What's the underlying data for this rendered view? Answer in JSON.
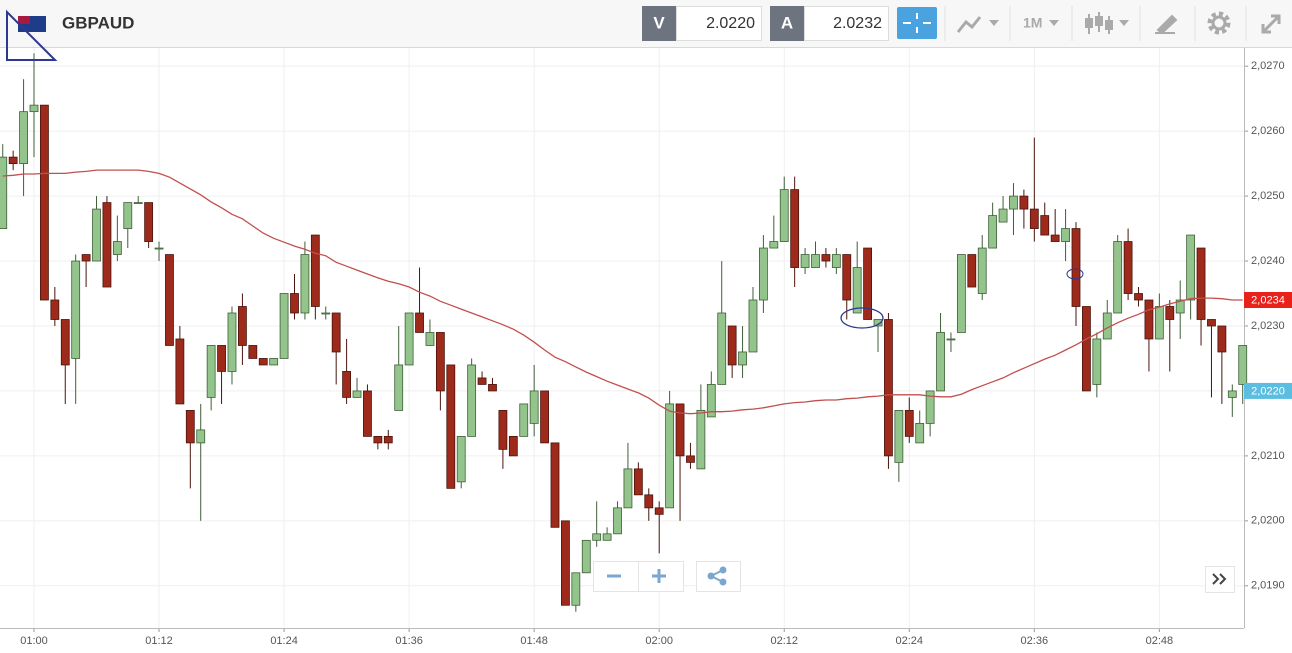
{
  "header": {
    "symbol": "GBPAUD",
    "sell_label": "V",
    "sell_price": "2.0220",
    "buy_label": "A",
    "buy_price": "2.0232",
    "timeframe": "1M"
  },
  "chart_data": {
    "type": "candlestick",
    "categories": [
      null,
      null,
      null,
      "01:00",
      null,
      null,
      null,
      null,
      null,
      null,
      null,
      null,
      null,
      null,
      null,
      "01:12",
      null,
      null,
      null,
      null,
      null,
      null,
      null,
      null,
      null,
      null,
      null,
      "01:24",
      null,
      null,
      null,
      null,
      null,
      null,
      null,
      null,
      null,
      null,
      null,
      "01:36",
      null,
      null,
      null,
      null,
      null,
      null,
      null,
      null,
      null,
      null,
      null,
      "01:48",
      null,
      null,
      null,
      null,
      null,
      null,
      null,
      null,
      null,
      null,
      null,
      "02:00",
      null,
      null,
      null,
      null,
      null,
      null,
      null,
      null,
      null,
      null,
      null,
      "02:12",
      null,
      null,
      null,
      null,
      null,
      null,
      null,
      null,
      null,
      null,
      null,
      "02:24",
      null,
      null,
      null,
      null,
      null,
      null,
      null,
      null,
      null,
      null,
      null,
      "02:36",
      null,
      null,
      null,
      null,
      null,
      null,
      null,
      null,
      null,
      null,
      null,
      "02:48",
      null,
      null,
      null,
      null,
      null,
      null,
      null,
      null
    ],
    "open": [
      2.0245,
      2.0256,
      2.0255,
      2.0263,
      2.0264,
      2.0234,
      2.0231,
      2.0225,
      2.0241,
      2.024,
      2.0249,
      2.0241,
      2.0245,
      2.0249,
      2.0249,
      2.0242,
      2.0241,
      2.0228,
      2.0217,
      2.0212,
      2.0219,
      2.0227,
      2.0223,
      2.0233,
      2.0227,
      2.0225,
      2.0224,
      2.0225,
      2.0235,
      2.0232,
      2.0244,
      2.0232,
      2.0232,
      2.0223,
      2.0219,
      2.022,
      2.0213,
      2.0213,
      2.0217,
      2.0224,
      2.0232,
      2.0227,
      2.0229,
      2.0224,
      2.0206,
      2.0213,
      2.0222,
      2.0221,
      2.0217,
      2.0213,
      2.0213,
      2.0215,
      2.022,
      2.0212,
      2.02,
      2.0187,
      2.0192,
      2.0197,
      2.0197,
      2.0198,
      2.0202,
      2.0208,
      2.0204,
      2.0202,
      2.0202,
      2.0218,
      2.021,
      2.0208,
      2.0216,
      2.0221,
      2.023,
      2.0224,
      2.0226,
      2.0234,
      2.0242,
      2.0243,
      2.0251,
      2.0239,
      2.0239,
      2.0241,
      2.0239,
      2.0241,
      2.0232,
      2.0242,
      2.023,
      2.0231,
      2.0209,
      2.0217,
      2.0212,
      2.0215,
      2.022,
      2.0228,
      2.0229,
      2.0241,
      2.0235,
      2.0242,
      2.0246,
      2.0248,
      2.025,
      2.0248,
      2.0247,
      2.0244,
      2.0243,
      2.0245,
      2.0233,
      2.0221,
      2.0228,
      2.0232,
      2.0243,
      2.0235,
      2.0234,
      2.0228,
      2.0233,
      2.0232,
      2.0234,
      2.0242,
      2.0231,
      2.023,
      2.0219,
      2.0221
    ],
    "high": [
      2.0258,
      2.0257,
      2.0268,
      2.0272,
      2.0264,
      2.0236,
      2.0231,
      2.0241,
      2.0241,
      2.025,
      2.025,
      2.0247,
      2.0249,
      2.025,
      2.0249,
      2.0243,
      2.0241,
      2.023,
      2.0217,
      2.0218,
      2.0227,
      2.0227,
      2.0233,
      2.0235,
      2.0227,
      2.0225,
      2.0225,
      2.0235,
      2.0238,
      2.0243,
      2.0244,
      2.0233,
      2.0232,
      2.0228,
      2.0222,
      2.0221,
      2.0213,
      2.0214,
      2.023,
      2.0232,
      2.0239,
      2.0231,
      2.0229,
      2.0224,
      2.0213,
      2.0225,
      2.0223,
      2.0222,
      2.0217,
      2.0213,
      2.0218,
      2.0224,
      2.022,
      2.0212,
      2.02,
      2.0192,
      2.0197,
      2.0203,
      2.0199,
      2.0203,
      2.0212,
      2.0209,
      2.0205,
      2.0203,
      2.022,
      2.0218,
      2.0212,
      2.0221,
      2.0223,
      2.024,
      2.023,
      2.023,
      2.0236,
      2.0244,
      2.0247,
      2.0253,
      2.0253,
      2.0242,
      2.0243,
      2.0242,
      2.0242,
      2.0241,
      2.0243,
      2.0242,
      2.0231,
      2.0232,
      2.0217,
      2.0219,
      2.0217,
      2.022,
      2.0232,
      2.0229,
      2.0241,
      2.0241,
      2.0244,
      2.0249,
      2.025,
      2.0252,
      2.0251,
      2.0259,
      2.0249,
      2.0248,
      2.0248,
      2.0246,
      2.0233,
      2.0229,
      2.0234,
      2.0244,
      2.0245,
      2.0236,
      2.0234,
      2.0235,
      2.0234,
      2.0237,
      2.0244,
      2.0242,
      2.0231,
      2.023,
      2.0221,
      2.0227
    ],
    "low": [
      2.0245,
      2.0254,
      2.025,
      2.0256,
      2.0234,
      2.023,
      2.0218,
      2.0218,
      2.0236,
      2.024,
      2.0236,
      2.024,
      2.0242,
      2.0249,
      2.0242,
      2.024,
      2.0227,
      2.0218,
      2.0205,
      2.02,
      2.0217,
      2.0218,
      2.0221,
      2.0224,
      2.0225,
      2.0224,
      2.0224,
      2.0225,
      2.0231,
      2.0231,
      2.0231,
      2.0231,
      2.0221,
      2.0218,
      2.0219,
      2.0213,
      2.0211,
      2.0211,
      2.0217,
      2.0224,
      2.0229,
      2.0227,
      2.0217,
      2.0205,
      2.0205,
      2.0213,
      2.0221,
      2.022,
      2.0208,
      2.021,
      2.0213,
      2.0213,
      2.0212,
      2.0199,
      2.0187,
      2.0186,
      2.0192,
      2.0196,
      2.0197,
      2.0198,
      2.0202,
      2.0204,
      2.02,
      2.0195,
      2.0202,
      2.02,
      2.0208,
      2.0208,
      2.0216,
      2.0221,
      2.0222,
      2.0222,
      2.0226,
      2.0232,
      2.0242,
      2.0243,
      2.0236,
      2.0238,
      2.0239,
      2.0239,
      2.0238,
      2.0231,
      2.0232,
      2.0231,
      2.0226,
      2.0208,
      2.0206,
      2.0212,
      2.0212,
      2.0213,
      2.022,
      2.0226,
      2.0229,
      2.0236,
      2.0234,
      2.0242,
      2.0246,
      2.0244,
      2.0245,
      2.0243,
      2.0244,
      2.0243,
      2.024,
      2.023,
      2.022,
      2.0219,
      2.0228,
      2.0232,
      2.0234,
      2.0233,
      2.0223,
      2.0228,
      2.0223,
      2.0228,
      2.0231,
      2.0227,
      2.0219,
      2.0218,
      2.0216,
      2.0218
    ],
    "close": [
      2.0256,
      2.0255,
      2.0263,
      2.0264,
      2.0234,
      2.0231,
      2.0224,
      2.024,
      2.024,
      2.0248,
      2.0236,
      2.0243,
      2.0249,
      2.0249,
      2.0243,
      2.0242,
      2.0227,
      2.0218,
      2.0212,
      2.0214,
      2.0227,
      2.0223,
      2.0232,
      2.0227,
      2.0225,
      2.0224,
      2.0225,
      2.0235,
      2.0232,
      2.0241,
      2.0233,
      2.0232,
      2.0226,
      2.0219,
      2.022,
      2.0213,
      2.0212,
      2.0212,
      2.0224,
      2.0232,
      2.0229,
      2.0229,
      2.022,
      2.0205,
      2.0213,
      2.0224,
      2.0221,
      2.022,
      2.0211,
      2.021,
      2.0218,
      2.022,
      2.0212,
      2.0199,
      2.0187,
      2.0192,
      2.0197,
      2.0198,
      2.0198,
      2.0202,
      2.0208,
      2.0204,
      2.0202,
      2.0201,
      2.0218,
      2.021,
      2.0209,
      2.0217,
      2.0221,
      2.0232,
      2.0224,
      2.0226,
      2.0234,
      2.0242,
      2.0243,
      2.0251,
      2.0239,
      2.0241,
      2.0241,
      2.024,
      2.0241,
      2.0234,
      2.0239,
      2.0231,
      2.0231,
      2.021,
      2.0217,
      2.0213,
      2.0215,
      2.022,
      2.0229,
      2.0228,
      2.0241,
      2.0236,
      2.0242,
      2.0247,
      2.0248,
      2.025,
      2.0248,
      2.0245,
      2.0244,
      2.0243,
      2.0245,
      2.0233,
      2.022,
      2.0228,
      2.0232,
      2.0243,
      2.0235,
      2.0234,
      2.0228,
      2.0233,
      2.0231,
      2.0234,
      2.0244,
      2.0231,
      2.023,
      2.0226,
      2.022,
      2.0227
    ],
    "up_color": "#93c48b",
    "down_color": "#9e2a1c",
    "moving_average": {
      "color": "#c0504d",
      "values": [
        2.02531,
        2.02532,
        2.02534,
        2.02534,
        2.02535,
        2.02535,
        2.02535,
        2.02537,
        2.02538,
        2.0254,
        2.0254,
        2.0254,
        2.0254,
        2.0254,
        2.02538,
        2.02535,
        2.02529,
        2.0252,
        2.02511,
        2.02502,
        2.02491,
        2.02482,
        2.02472,
        2.02465,
        2.02454,
        2.02443,
        2.02435,
        2.02429,
        2.02423,
        2.02418,
        2.02412,
        2.02408,
        2.02398,
        2.02392,
        2.02386,
        2.0238,
        2.02374,
        2.02369,
        2.02365,
        2.0236,
        2.02352,
        2.02346,
        2.02338,
        2.02332,
        2.02326,
        2.0232,
        2.02314,
        2.02308,
        2.02302,
        2.02295,
        2.02286,
        2.02275,
        2.02263,
        2.02252,
        2.02245,
        2.02237,
        2.02229,
        2.02222,
        2.02215,
        2.02209,
        2.02203,
        2.02197,
        2.02189,
        2.02178,
        2.02169,
        2.02166,
        2.02165,
        2.02166,
        2.02168,
        2.02168,
        2.02169,
        2.02171,
        2.02172,
        2.02174,
        2.02177,
        2.0218,
        2.02182,
        2.02183,
        2.02185,
        2.02186,
        2.02186,
        2.02188,
        2.02189,
        2.02191,
        2.02192,
        2.02194,
        2.02194,
        2.02194,
        2.02194,
        2.02192,
        2.02191,
        2.02191,
        2.02195,
        2.02202,
        2.02208,
        2.02214,
        2.0222,
        2.02228,
        2.02235,
        2.02242,
        2.02249,
        2.02255,
        2.02263,
        2.02271,
        2.0228,
        2.02288,
        2.02297,
        2.02305,
        2.02312,
        2.02318,
        2.02325,
        2.02329,
        2.02334,
        2.02338,
        2.02342,
        2.02343,
        2.02343,
        2.02342,
        2.0234,
        2.0234
      ]
    },
    "ylim": [
      2.01835,
      2.02728
    ],
    "yticks": [
      {
        "value": 2.019,
        "label": "2,0190"
      },
      {
        "value": 2.02,
        "label": "2,0200"
      },
      {
        "value": 2.021,
        "label": "2,0210"
      },
      {
        "value": 2.022,
        "label": "2,0220"
      },
      {
        "value": 2.023,
        "label": "2,0230"
      },
      {
        "value": 2.024,
        "label": "2,0240"
      },
      {
        "value": 2.025,
        "label": "2,0250"
      },
      {
        "value": 2.026,
        "label": "2,0260"
      },
      {
        "value": 2.027,
        "label": "2,0270"
      }
    ],
    "grid": true,
    "price_markers": [
      {
        "value": 2.0234,
        "label": "2,0234",
        "color": "#e8221b"
      },
      {
        "value": 2.022,
        "label": "2,0220",
        "color": "#5bbde0"
      }
    ]
  }
}
